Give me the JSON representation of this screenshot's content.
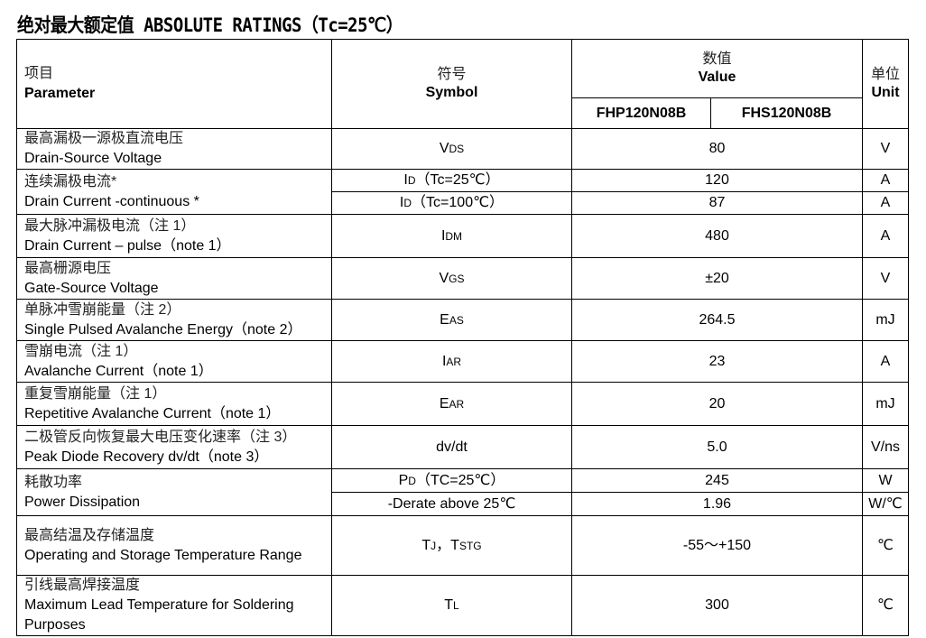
{
  "title": "绝对最大额定值 ABSOLUTE RATINGS（Tc=25℃）",
  "header": {
    "param_cn": "项目",
    "param_en": "Parameter",
    "symbol_cn": "符号",
    "symbol_en": "Symbol",
    "value_cn": "数值",
    "value_en": "Value",
    "part1": "FHP120N08B",
    "part2": "FHS120N08B",
    "unit_cn": "单位",
    "unit_en": "Unit"
  },
  "rows": [
    {
      "cn": "最高漏极一源极直流电压",
      "en": "Drain-Source Voltage",
      "sub": [
        {
          "m": "V",
          "s": "DS",
          "x": "",
          "v": "80",
          "u": "V"
        }
      ]
    },
    {
      "cn": "连续漏极电流*",
      "en": "Drain Current -continuous *",
      "sub": [
        {
          "m": "I",
          "s": "D",
          "x": "（Tc=25℃）",
          "v": "120",
          "u": "A"
        },
        {
          "m": "I",
          "s": "D",
          "x": "（Tc=100℃）",
          "v": "87",
          "u": "A"
        }
      ]
    },
    {
      "cn": "最大脉冲漏极电流（注 1）",
      "en": "Drain Current – pulse（note 1）",
      "sub": [
        {
          "m": "I",
          "s": "DM",
          "x": "",
          "v": "480",
          "u": "A"
        }
      ]
    },
    {
      "cn": "最高栅源电压",
      "en": "Gate-Source Voltage",
      "sub": [
        {
          "m": "V",
          "s": "GS",
          "x": "",
          "v": "±20",
          "u": "V"
        }
      ]
    },
    {
      "cn": "单脉冲雪崩能量（注 2）",
      "en": "Single Pulsed Avalanche Energy（note 2）",
      "sub": [
        {
          "m": "E",
          "s": "AS",
          "x": "",
          "v": "264.5",
          "u": "mJ"
        }
      ]
    },
    {
      "cn": "雪崩电流（注 1）",
      "en": "Avalanche Current（note 1）",
      "sub": [
        {
          "m": "I",
          "s": "AR",
          "x": "",
          "v": "23",
          "u": "A"
        }
      ]
    },
    {
      "cn": "重复雪崩能量（注 1）",
      "en": "Repetitive Avalanche Current（note 1）",
      "sub": [
        {
          "m": "E",
          "s": "AR",
          "x": "",
          "v": "20",
          "u": "mJ"
        }
      ]
    },
    {
      "cn": "二极管反向恢复最大电压变化速率（注 3）",
      "en": " Peak Diode Recovery dv/dt（note 3）",
      "sub": [
        {
          "m": "dv/dt",
          "s": "",
          "x": "",
          "v": "5.0",
          "u": "V/ns"
        }
      ]
    },
    {
      "cn": "耗散功率",
      "en": "Power Dissipation",
      "sub": [
        {
          "m": "P",
          "s": "D",
          "x": "（TC=25℃）",
          "v": "245",
          "u": "W"
        },
        {
          "m": "-Derate above 25℃",
          "s": "",
          "x": "",
          "v": "1.96",
          "u": "W/℃"
        }
      ]
    },
    {
      "cn": "最高结温及存储温度",
      "en": "Operating and Storage Temperature Range",
      "sub": [
        {
          "m": "T",
          "s": "J",
          "x": "，T",
          "s2": "STG",
          "v": "-55～+150",
          "u": "℃"
        }
      ]
    },
    {
      "cn": "引线最高焊接温度",
      "en": "Maximum Lead Temperature for Soldering Purposes",
      "sub": [
        {
          "m": "T",
          "s": "L",
          "x": "",
          "v": "300",
          "u": "℃"
        }
      ]
    }
  ]
}
